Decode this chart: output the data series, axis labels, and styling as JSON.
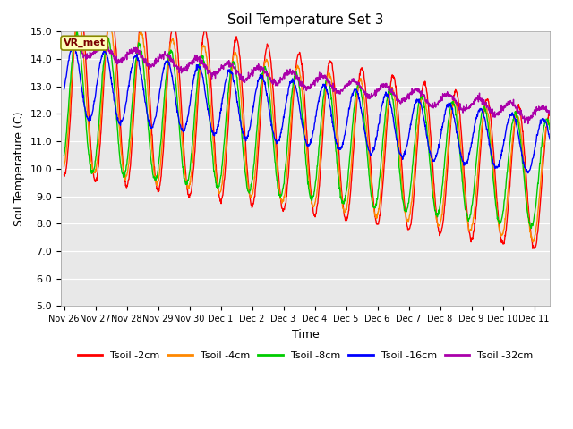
{
  "title": "Soil Temperature Set 3",
  "xlabel": "Time",
  "ylabel": "Soil Temperature (C)",
  "ylim": [
    5.0,
    15.0
  ],
  "yticks": [
    5.0,
    6.0,
    7.0,
    8.0,
    9.0,
    10.0,
    11.0,
    12.0,
    13.0,
    14.0,
    15.0
  ],
  "x_labels": [
    "Nov 26",
    "Nov 27",
    "Nov 28",
    "Nov 29",
    "Nov 30",
    "Dec 1",
    "Dec 2",
    "Dec 3",
    "Dec 4",
    "Dec 5",
    "Dec 6",
    "Dec 7",
    "Dec 8",
    "Dec 9",
    "Dec 10",
    "Dec 11"
  ],
  "series_colors": [
    "#ff0000",
    "#ff8800",
    "#00cc00",
    "#0000ff",
    "#aa00aa"
  ],
  "series_labels": [
    "Tsoil -2cm",
    "Tsoil -4cm",
    "Tsoil -8cm",
    "Tsoil -16cm",
    "Tsoil -32cm"
  ],
  "legend_label": "VR_met",
  "n_points": 1500,
  "duration_days": 15.5
}
